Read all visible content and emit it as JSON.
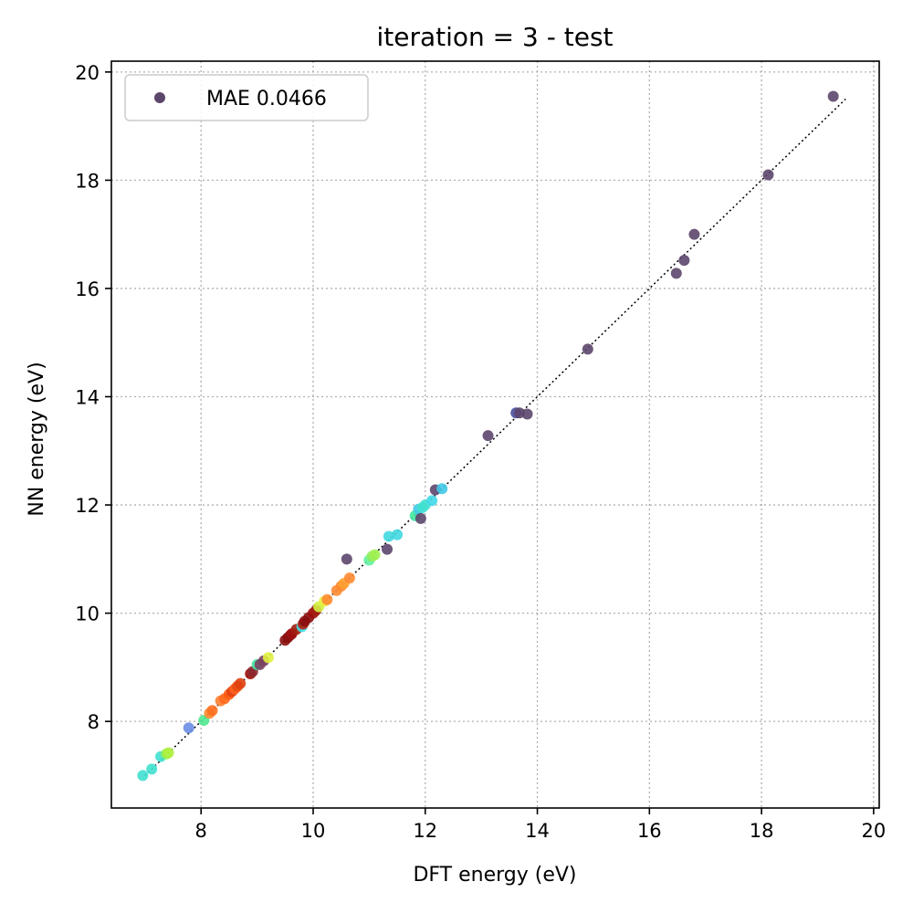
{
  "chart_data": {
    "type": "scatter",
    "title": "iteration = 3 - test",
    "xlabel": "DFT energy (eV)",
    "ylabel": "NN energy (eV)",
    "xlim": [
      6.4,
      20.1
    ],
    "ylim": [
      6.4,
      20.2
    ],
    "xticks": [
      8,
      10,
      12,
      14,
      16,
      18,
      20
    ],
    "yticks": [
      8,
      10,
      12,
      14,
      16,
      18,
      20
    ],
    "grid": true,
    "legend": {
      "placement": "top-left",
      "entries": [
        "MAE 0.0466"
      ],
      "marker_color": "#5c466b"
    },
    "reference_line": {
      "x": [
        7.0,
        19.5
      ],
      "y": [
        7.0,
        19.5
      ]
    },
    "series": [
      {
        "name": "MAE 0.0466",
        "x": [
          6.96,
          7.12,
          7.28,
          7.38,
          7.42,
          7.78,
          8.05,
          8.15,
          8.2,
          8.35,
          8.42,
          8.5,
          8.55,
          8.6,
          8.65,
          8.7,
          8.88,
          8.92,
          9.0,
          9.05,
          9.12,
          9.2,
          9.5,
          9.55,
          9.6,
          9.62,
          9.7,
          9.8,
          9.82,
          9.85,
          9.92,
          10.0,
          10.05,
          10.1,
          10.2,
          10.25,
          10.42,
          10.5,
          10.55,
          10.6,
          10.65,
          11.0,
          11.05,
          11.1,
          11.32,
          11.35,
          11.5,
          11.82,
          11.88,
          11.92,
          11.95,
          12.0,
          12.12,
          12.18,
          12.3,
          13.12,
          13.62,
          13.68,
          13.82,
          14.9,
          16.48,
          16.62,
          16.8,
          18.12,
          19.28
        ],
        "y": [
          7.0,
          7.12,
          7.35,
          7.4,
          7.42,
          7.88,
          8.02,
          8.15,
          8.2,
          8.38,
          8.42,
          8.5,
          8.55,
          8.6,
          8.65,
          8.7,
          8.88,
          8.92,
          9.05,
          9.05,
          9.12,
          9.18,
          9.5,
          9.55,
          9.6,
          9.62,
          9.7,
          9.75,
          9.8,
          9.85,
          9.92,
          10.0,
          10.05,
          10.12,
          10.22,
          10.25,
          10.42,
          10.5,
          10.55,
          11.0,
          10.65,
          10.98,
          11.05,
          11.08,
          11.18,
          11.42,
          11.45,
          11.8,
          11.92,
          11.75,
          11.95,
          12.0,
          12.08,
          12.28,
          12.3,
          13.28,
          13.7,
          13.7,
          13.68,
          14.88,
          16.28,
          16.52,
          17.0,
          18.1,
          19.55
        ],
        "colors": [
          "#40e0d0",
          "#40e0d0",
          "#40e0d0",
          "#90ee50",
          "#b0f040",
          "#6a8de8",
          "#50e890",
          "#ff8a30",
          "#ff7020",
          "#ff8030",
          "#ff6a20",
          "#ff5a10",
          "#e04010",
          "#ff6020",
          "#e84a10",
          "#e04010",
          "#a01008",
          "#8a2a30",
          "#40e8a0",
          "#7a4060",
          "#7a4060",
          "#e0f040",
          "#8a1010",
          "#8a1010",
          "#8a1010",
          "#a01010",
          "#a02010",
          "#40e0e8",
          "#b02010",
          "#8a1010",
          "#8a1010",
          "#a01010",
          "#a02010",
          "#d0f040",
          "#e8f040",
          "#ff8a30",
          "#ff8a30",
          "#ff8a30",
          "#ffa030",
          "#5c466b",
          "#ff8a30",
          "#60f0a0",
          "#8ef060",
          "#a0f050",
          "#5c466b",
          "#40d8e0",
          "#40d8e0",
          "#40e8a0",
          "#40c8e8",
          "#5c466b",
          "#40e0d0",
          "#40e0d0",
          "#40d8e8",
          "#5c466b",
          "#40c8e8",
          "#5c466b",
          "#4a50a0",
          "#5c466b",
          "#5c466b",
          "#5c466b",
          "#5c466b",
          "#5c466b",
          "#5c466b",
          "#5c466b",
          "#5c466b"
        ]
      }
    ]
  }
}
